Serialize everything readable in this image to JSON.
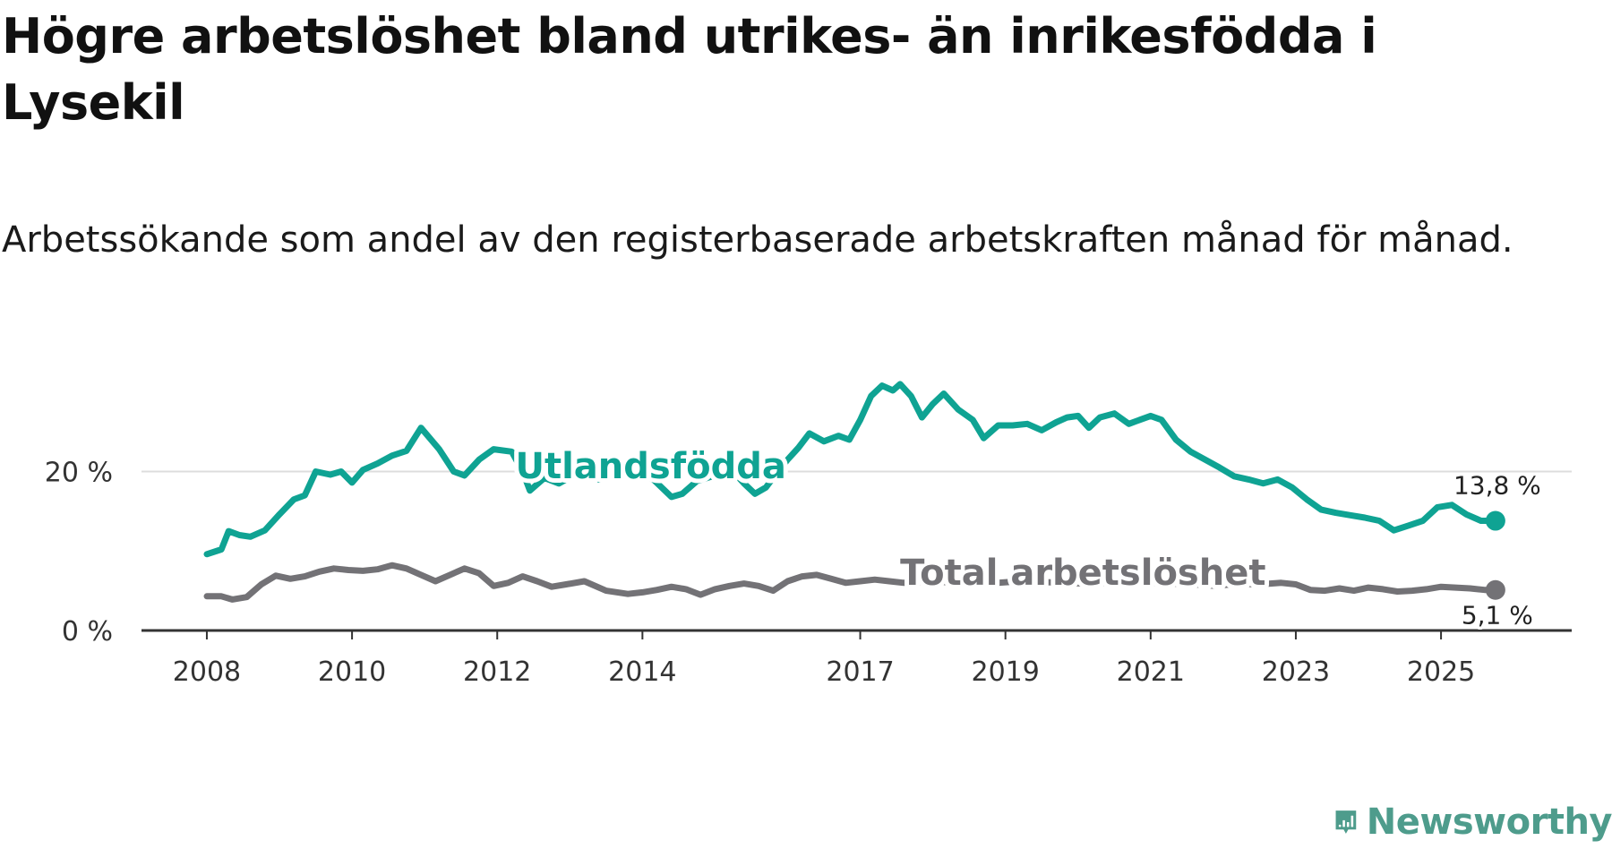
{
  "title": "Högre arbetslöshet bland utrikes- än inrikesfödda i Lysekil",
  "subtitle": "Arbetssökande som andel av den registerbaserade arbetskraften månad för månad.",
  "brand": "Newsworthy",
  "colors": {
    "utlandsfodda": "#0fa393",
    "total": "#737276",
    "grid": "#dddddd",
    "axis": "#333333",
    "brand": "#4e9c8c"
  },
  "chart_data": {
    "type": "line",
    "xlim": [
      2007.1,
      2026.8
    ],
    "ylim": [
      0,
      32
    ],
    "yticks": [
      0,
      20
    ],
    "ytick_labels": [
      "0 %",
      "20 %"
    ],
    "xticks": [
      2008,
      2010,
      2012,
      2014,
      2017,
      2019,
      2021,
      2023,
      2025
    ],
    "xtick_labels": [
      "2008",
      "2010",
      "2012",
      "2014",
      "2017",
      "2019",
      "2021",
      "2023",
      "2025"
    ],
    "series": [
      {
        "name": "Utlandsfödda",
        "label": "Utlandsfödda",
        "end_label": "13,8 %",
        "x": [
          2008.0,
          2008.2,
          2008.3,
          2008.45,
          2008.6,
          2008.8,
          2009.0,
          2009.2,
          2009.35,
          2009.5,
          2009.7,
          2009.85,
          2010.0,
          2010.15,
          2010.35,
          2010.55,
          2010.75,
          2010.95,
          2011.2,
          2011.4,
          2011.55,
          2011.75,
          2011.95,
          2012.2,
          2012.35,
          2012.45,
          2012.65,
          2012.85,
          2013.1,
          2013.4,
          2013.7,
          2013.95,
          2014.15,
          2014.4,
          2014.55,
          2014.75,
          2015.0,
          2015.25,
          2015.4,
          2015.55,
          2015.7,
          2015.85,
          2016.0,
          2016.15,
          2016.3,
          2016.5,
          2016.7,
          2016.85,
          2017.0,
          2017.15,
          2017.3,
          2017.45,
          2017.55,
          2017.7,
          2017.85,
          2018.0,
          2018.15,
          2018.35,
          2018.55,
          2018.7,
          2018.9,
          2019.1,
          2019.3,
          2019.5,
          2019.7,
          2019.85,
          2020.0,
          2020.15,
          2020.3,
          2020.5,
          2020.7,
          2020.85,
          2021.0,
          2021.15,
          2021.35,
          2021.55,
          2021.75,
          2021.95,
          2022.15,
          2022.35,
          2022.55,
          2022.75,
          2022.95,
          2023.15,
          2023.35,
          2023.55,
          2023.75,
          2023.95,
          2024.15,
          2024.35,
          2024.55,
          2024.75,
          2024.95,
          2025.15,
          2025.35,
          2025.55,
          2025.75
        ],
        "y": [
          9.6,
          10.2,
          12.5,
          12.0,
          11.8,
          12.6,
          14.6,
          16.5,
          17.0,
          20.0,
          19.6,
          20.0,
          18.6,
          20.2,
          21.0,
          22.0,
          22.6,
          25.5,
          22.8,
          20.0,
          19.5,
          21.5,
          22.8,
          22.5,
          20.0,
          17.6,
          19.2,
          18.5,
          19.8,
          19.0,
          19.5,
          19.8,
          19.0,
          16.8,
          17.2,
          18.8,
          19.5,
          20.0,
          18.5,
          17.2,
          18.0,
          19.8,
          21.5,
          23.0,
          24.8,
          23.8,
          24.5,
          24.0,
          26.5,
          29.5,
          30.8,
          30.2,
          31.0,
          29.5,
          26.8,
          28.5,
          29.8,
          27.8,
          26.5,
          24.2,
          25.8,
          25.8,
          26.0,
          25.2,
          26.2,
          26.8,
          27.0,
          25.5,
          26.8,
          27.3,
          26.0,
          26.5,
          27.0,
          26.5,
          24.0,
          22.5,
          21.5,
          20.5,
          19.4,
          19.0,
          18.5,
          19.0,
          18.0,
          16.5,
          15.2,
          14.8,
          14.5,
          14.2,
          13.8,
          12.6,
          13.2,
          13.8,
          15.5,
          15.8,
          14.6,
          13.8,
          13.8
        ]
      },
      {
        "name": "Total arbetslöshet",
        "label": "Total arbetslöshet",
        "end_label": "5,1 %",
        "x": [
          2008.0,
          2008.2,
          2008.35,
          2008.55,
          2008.75,
          2008.95,
          2009.15,
          2009.35,
          2009.55,
          2009.75,
          2009.95,
          2010.15,
          2010.35,
          2010.55,
          2010.75,
          2010.95,
          2011.15,
          2011.35,
          2011.55,
          2011.75,
          2011.95,
          2012.15,
          2012.35,
          2012.55,
          2012.75,
          2012.95,
          2013.2,
          2013.5,
          2013.8,
          2014.0,
          2014.2,
          2014.4,
          2014.6,
          2014.8,
          2015.0,
          2015.2,
          2015.4,
          2015.6,
          2015.8,
          2016.0,
          2016.2,
          2016.4,
          2016.6,
          2016.8,
          2017.0,
          2017.2,
          2017.4,
          2017.6,
          2017.8,
          2018.0,
          2018.3,
          2018.6,
          2018.9,
          2019.2,
          2019.5,
          2019.8,
          2020.1,
          2020.4,
          2020.7,
          2021.0,
          2021.3,
          2021.6,
          2021.9,
          2022.2,
          2022.5,
          2022.8,
          2023.0,
          2023.2,
          2023.4,
          2023.6,
          2023.8,
          2024.0,
          2024.2,
          2024.4,
          2024.6,
          2024.8,
          2025.0,
          2025.2,
          2025.4,
          2025.6,
          2025.75
        ],
        "y": [
          4.3,
          4.3,
          3.9,
          4.2,
          5.8,
          6.9,
          6.5,
          6.8,
          7.4,
          7.8,
          7.6,
          7.5,
          7.7,
          8.2,
          7.8,
          7.0,
          6.2,
          7.0,
          7.8,
          7.2,
          5.6,
          6.0,
          6.8,
          6.2,
          5.5,
          5.8,
          6.2,
          5.0,
          4.6,
          4.8,
          5.1,
          5.5,
          5.2,
          4.5,
          5.2,
          5.6,
          5.9,
          5.6,
          5.0,
          6.2,
          6.8,
          7.0,
          6.5,
          6.0,
          6.2,
          6.4,
          6.2,
          6.0,
          6.1,
          6.2,
          6.0,
          5.9,
          6.0,
          6.2,
          6.1,
          6.0,
          5.9,
          6.0,
          6.1,
          6.0,
          5.9,
          5.8,
          5.6,
          5.9,
          5.8,
          6.0,
          5.8,
          5.1,
          5.0,
          5.3,
          5.0,
          5.4,
          5.2,
          4.9,
          5.0,
          5.2,
          5.5,
          5.4,
          5.3,
          5.1,
          5.1
        ]
      }
    ]
  }
}
